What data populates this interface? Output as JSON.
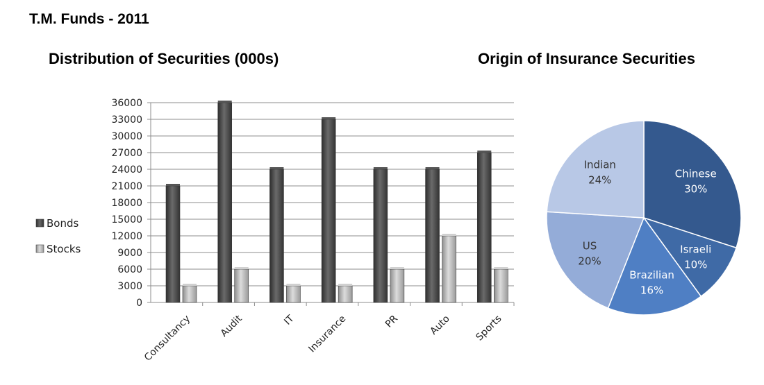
{
  "page": {
    "title": "T.M. Funds - 2011"
  },
  "chart_data": [
    {
      "type": "bar",
      "title": "Distribution of Securities (000s)",
      "xlabel": "",
      "ylabel": "",
      "categories": [
        "Consultancy",
        "Audit",
        "IT",
        "Insurance",
        "PR",
        "Auto",
        "Sports"
      ],
      "series": [
        {
          "name": "Bonds",
          "values": [
            21000,
            36000,
            24000,
            33000,
            24000,
            24000,
            27000
          ]
        },
        {
          "name": "Stocks",
          "values": [
            3000,
            6000,
            3000,
            3000,
            6000,
            12000,
            6000
          ]
        }
      ],
      "ylim": [
        0,
        36000
      ],
      "yticks": [
        "0",
        "3000",
        "6000",
        "9000",
        "12000",
        "15000",
        "18000",
        "21000",
        "24000",
        "27000",
        "30000",
        "33000",
        "36000"
      ],
      "grid": true,
      "legend": "left",
      "colors": {
        "Bonds": "#4a4a4a",
        "Stocks": "#bdbdbd"
      }
    },
    {
      "type": "pie",
      "title": "Origin of Insurance Securities",
      "slices": [
        {
          "label": "Chinese",
          "value": 30,
          "pct": "30%",
          "color": "#34598e"
        },
        {
          "label": "Israeli",
          "value": 10,
          "pct": "10%",
          "color": "#3f6aa6"
        },
        {
          "label": "Brazilian",
          "value": 16,
          "pct": "16%",
          "color": "#4f7fc4"
        },
        {
          "label": "US",
          "value": 20,
          "pct": "20%",
          "color": "#94acd8"
        },
        {
          "label": "Indian",
          "value": 24,
          "pct": "24%",
          "color": "#b8c8e6"
        }
      ]
    }
  ]
}
